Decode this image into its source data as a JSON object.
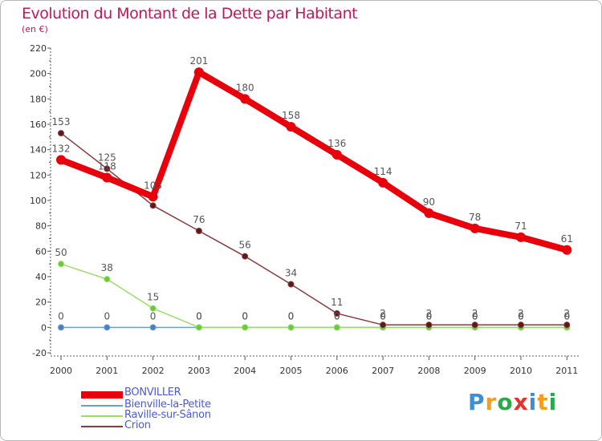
{
  "chart_data": {
    "type": "line",
    "title": "Evolution du Montant de la Dette par Habitant",
    "subtitle": "(en €)",
    "x": [
      "2000",
      "2001",
      "2002",
      "2003",
      "2004",
      "2005",
      "2006",
      "2007",
      "2008",
      "2009",
      "2010",
      "2011"
    ],
    "ylim": [
      -20,
      220
    ],
    "yticks": [
      -20,
      0,
      20,
      40,
      60,
      80,
      100,
      120,
      140,
      160,
      180,
      200,
      220
    ],
    "grid": false,
    "series": [
      {
        "name": "BONVILLER",
        "color": "#e8000b",
        "values": [
          132,
          118,
          103,
          201,
          180,
          158,
          136,
          114,
          90,
          78,
          71,
          61
        ],
        "labels": [
          "132",
          "118",
          "103",
          "201",
          "180",
          "158",
          "136",
          "114",
          "90",
          "78",
          "71",
          "61"
        ]
      },
      {
        "name": "Bienville-la-Petite",
        "color": "#6a9fd4",
        "values": [
          0,
          0,
          0,
          0,
          0,
          0,
          0,
          0,
          0,
          0,
          0,
          0
        ],
        "labels": [
          "0",
          "0",
          "0",
          "0",
          "0",
          "0",
          "0",
          "0",
          "0",
          "0",
          "0",
          "0"
        ]
      },
      {
        "name": "Raville-sur-Sânon",
        "color": "#99dd66",
        "values": [
          50,
          38,
          15,
          0,
          0,
          0,
          0,
          0,
          0,
          0,
          0,
          0
        ],
        "labels": [
          "50",
          "38",
          "15",
          "0",
          "0",
          "0",
          "0",
          "0",
          "0",
          "0",
          "0",
          "0"
        ]
      },
      {
        "name": "Crion",
        "color": "#8b3a3a",
        "values": [
          153,
          125,
          96,
          76,
          56,
          34,
          11,
          2,
          2,
          2,
          2,
          2
        ],
        "labels": [
          "153",
          "125",
          "",
          "76",
          "56",
          "34",
          "11",
          "2",
          "2",
          "2",
          "2",
          "2"
        ]
      }
    ]
  },
  "logo": {
    "text": "Proxiti",
    "colors": [
      "#3a8fd8",
      "#f0a020",
      "#2aa84a",
      "#e83030",
      "#3a8fd8",
      "#f0a020",
      "#2aa84a"
    ]
  }
}
